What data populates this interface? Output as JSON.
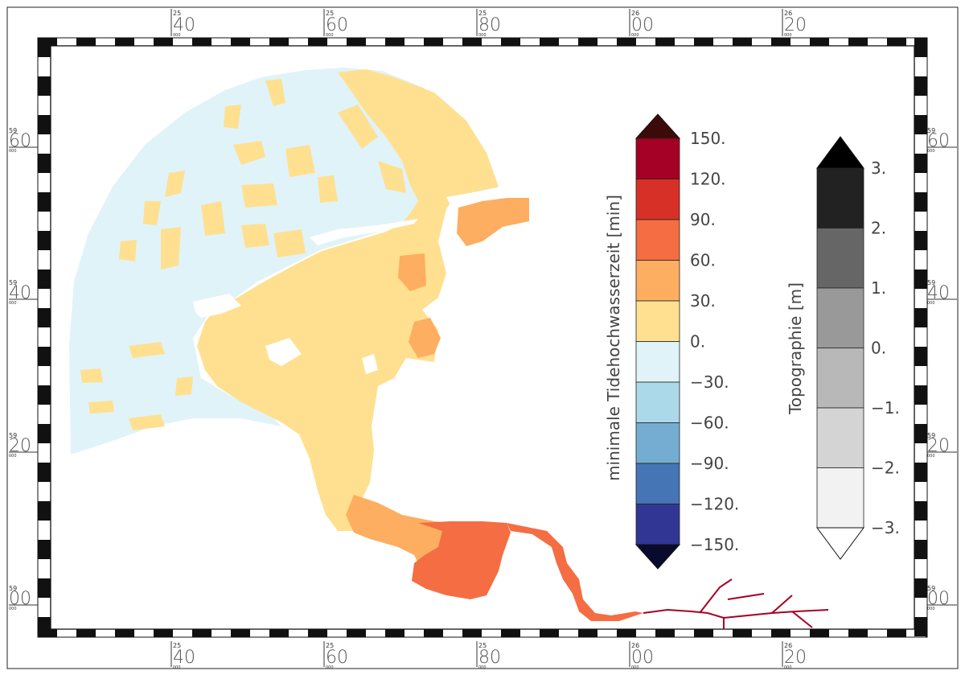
{
  "map": {
    "x_ticks": [
      {
        "small": "25",
        "big": "40",
        "sub": "000"
      },
      {
        "small": "25",
        "big": "60",
        "sub": "000"
      },
      {
        "small": "25",
        "big": "80",
        "sub": "000"
      },
      {
        "small": "26",
        "big": "00",
        "sub": "000"
      },
      {
        "small": "26",
        "big": "20",
        "sub": "000"
      }
    ],
    "y_ticks": [
      {
        "small": "59",
        "big": "60",
        "sub": "000"
      },
      {
        "small": "59",
        "big": "40",
        "sub": "000"
      },
      {
        "small": "59",
        "big": "20",
        "sub": "000"
      },
      {
        "small": "59",
        "big": "00",
        "sub": "000"
      }
    ]
  },
  "colorbar_main": {
    "title": "minimale Tidehochwasserzeit [min]",
    "labels": [
      "150.",
      "120.",
      "90.",
      "60.",
      "30.",
      "0.",
      "−30.",
      "−60.",
      "−90.",
      "−120.",
      "−150."
    ],
    "colors": [
      "#a50026",
      "#d73027",
      "#f46d43",
      "#fdae61",
      "#fee090",
      "#e0f3f8",
      "#abd9e9",
      "#74add1",
      "#4575b4",
      "#313695"
    ],
    "over_color": "#3d0a0a",
    "under_color": "#0a0a2e"
  },
  "colorbar_topo": {
    "title": "Topographie [m]",
    "labels": [
      "3.",
      "2.",
      "1.",
      "0.",
      "−1.",
      "−2.",
      "−3."
    ],
    "colors": [
      "#222222",
      "#666666",
      "#999999",
      "#b8b8b8",
      "#d4d4d4",
      "#f2f2f2"
    ],
    "over_color": "#000000",
    "under_color": "#ffffff"
  }
}
